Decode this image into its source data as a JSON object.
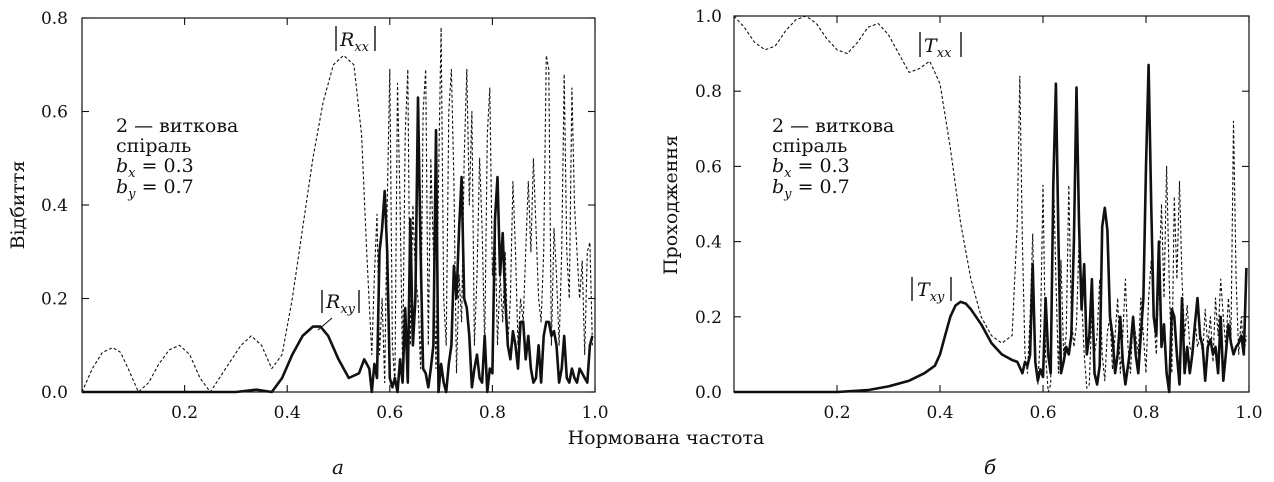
{
  "xlabel": "Нормована частота",
  "chart_data": [
    {
      "type": "line",
      "panel": "а",
      "xlabel": "Нормована частота",
      "ylabel": "Відбиття",
      "xlim": [
        0,
        1.0
      ],
      "ylim": [
        0,
        0.8
      ],
      "xticks": [
        "0.2",
        "0.4",
        "0.6",
        "0.8",
        "1.0"
      ],
      "yticks": [
        "0.0",
        "0.2",
        "0.4",
        "0.6",
        "0.8"
      ],
      "legend_lines": [
        "2 — виткова",
        "спіраль"
      ],
      "params": [
        {
          "sym": "b",
          "sub": "x",
          "val": " = 0.3"
        },
        {
          "sym": "b",
          "sub": "y",
          "val": " = 0.7"
        }
      ],
      "series": [
        {
          "name": "Rxx",
          "label_sym": "R",
          "label_sub": "xx",
          "style": "dashed",
          "x": [
            0.0,
            0.02,
            0.04,
            0.06,
            0.075,
            0.09,
            0.11,
            0.13,
            0.15,
            0.17,
            0.19,
            0.21,
            0.23,
            0.25,
            0.28,
            0.31,
            0.33,
            0.35,
            0.37,
            0.39,
            0.41,
            0.43,
            0.45,
            0.47,
            0.49,
            0.51,
            0.53,
            0.545,
            0.555,
            0.565,
            0.57,
            0.575,
            0.58,
            0.585,
            0.59,
            0.595,
            0.6,
            0.605,
            0.61,
            0.615,
            0.62,
            0.625,
            0.63,
            0.635,
            0.64,
            0.645,
            0.65,
            0.655,
            0.66,
            0.665,
            0.67,
            0.675,
            0.68,
            0.685,
            0.69,
            0.695,
            0.7,
            0.705,
            0.71,
            0.715,
            0.72,
            0.725,
            0.73,
            0.735,
            0.74,
            0.745,
            0.75,
            0.755,
            0.76,
            0.765,
            0.77,
            0.775,
            0.78,
            0.785,
            0.79,
            0.795,
            0.8,
            0.805,
            0.81,
            0.815,
            0.82,
            0.825,
            0.83,
            0.835,
            0.84,
            0.845,
            0.85,
            0.855,
            0.86,
            0.865,
            0.87,
            0.875,
            0.88,
            0.885,
            0.89,
            0.895,
            0.9,
            0.905,
            0.91,
            0.915,
            0.92,
            0.925,
            0.93,
            0.935,
            0.94,
            0.945,
            0.95,
            0.955,
            0.96,
            0.965,
            0.97,
            0.975,
            0.98,
            0.985,
            0.99,
            0.995
          ],
          "y": [
            0.0,
            0.05,
            0.085,
            0.095,
            0.085,
            0.05,
            0.0,
            0.02,
            0.06,
            0.09,
            0.1,
            0.08,
            0.03,
            0.0,
            0.05,
            0.1,
            0.12,
            0.1,
            0.05,
            0.08,
            0.2,
            0.35,
            0.5,
            0.62,
            0.7,
            0.72,
            0.7,
            0.55,
            0.3,
            0.08,
            0.25,
            0.38,
            0.08,
            0.2,
            0.02,
            0.4,
            0.69,
            0.1,
            0.02,
            0.66,
            0.4,
            0.05,
            0.55,
            0.69,
            0.1,
            0.4,
            0.25,
            0.2,
            0.05,
            0.6,
            0.69,
            0.1,
            0.5,
            0.3,
            0.05,
            0.45,
            0.78,
            0.2,
            0.1,
            0.6,
            0.69,
            0.45,
            0.04,
            0.25,
            0.15,
            0.5,
            0.69,
            0.4,
            0.6,
            0.1,
            0.25,
            0.5,
            0.35,
            0.1,
            0.55,
            0.65,
            0.25,
            0.35,
            0.1,
            0.25,
            0.15,
            0.3,
            0.1,
            0.2,
            0.45,
            0.3,
            0.1,
            0.2,
            0.15,
            0.3,
            0.45,
            0.3,
            0.5,
            0.35,
            0.2,
            0.15,
            0.3,
            0.72,
            0.69,
            0.1,
            0.35,
            0.25,
            0.1,
            0.3,
            0.68,
            0.3,
            0.2,
            0.65,
            0.4,
            0.3,
            0.2,
            0.28,
            0.08,
            0.3,
            0.32,
            0.1
          ]
        },
        {
          "name": "Rxy",
          "label_sym": "R",
          "label_sub": "xy",
          "style": "solid",
          "x": [
            0.0,
            0.1,
            0.2,
            0.3,
            0.34,
            0.37,
            0.39,
            0.41,
            0.43,
            0.45,
            0.465,
            0.48,
            0.5,
            0.52,
            0.54,
            0.55,
            0.56,
            0.565,
            0.57,
            0.575,
            0.58,
            0.585,
            0.59,
            0.595,
            0.6,
            0.605,
            0.61,
            0.615,
            0.62,
            0.625,
            0.63,
            0.635,
            0.64,
            0.645,
            0.65,
            0.655,
            0.66,
            0.665,
            0.67,
            0.675,
            0.68,
            0.685,
            0.69,
            0.695,
            0.7,
            0.705,
            0.71,
            0.715,
            0.72,
            0.725,
            0.73,
            0.735,
            0.74,
            0.745,
            0.75,
            0.755,
            0.76,
            0.765,
            0.77,
            0.775,
            0.78,
            0.785,
            0.79,
            0.795,
            0.8,
            0.805,
            0.81,
            0.815,
            0.82,
            0.825,
            0.83,
            0.835,
            0.84,
            0.845,
            0.85,
            0.855,
            0.86,
            0.865,
            0.87,
            0.875,
            0.88,
            0.885,
            0.89,
            0.895,
            0.9,
            0.905,
            0.91,
            0.915,
            0.92,
            0.925,
            0.93,
            0.935,
            0.94,
            0.945,
            0.95,
            0.955,
            0.96,
            0.965,
            0.97,
            0.975,
            0.98,
            0.985,
            0.99,
            0.995
          ],
          "y": [
            0.0,
            0.0,
            0.0,
            0.0,
            0.005,
            0.0,
            0.03,
            0.08,
            0.12,
            0.14,
            0.14,
            0.12,
            0.07,
            0.03,
            0.04,
            0.07,
            0.05,
            0.0,
            0.06,
            0.03,
            0.3,
            0.35,
            0.43,
            0.3,
            0.03,
            0.01,
            0.03,
            0.0,
            0.07,
            0.02,
            0.18,
            0.02,
            0.37,
            0.1,
            0.2,
            0.63,
            0.3,
            0.05,
            0.04,
            0.01,
            0.05,
            0.1,
            0.56,
            0.0,
            0.06,
            0.02,
            0.0,
            0.06,
            0.1,
            0.27,
            0.2,
            0.35,
            0.46,
            0.2,
            0.18,
            0.12,
            0.01,
            0.05,
            0.08,
            0.03,
            0.02,
            0.12,
            0.0,
            0.05,
            0.04,
            0.37,
            0.46,
            0.25,
            0.34,
            0.2,
            0.1,
            0.07,
            0.13,
            0.1,
            0.05,
            0.15,
            0.15,
            0.07,
            0.12,
            0.05,
            0.02,
            0.03,
            0.1,
            0.02,
            0.12,
            0.15,
            0.15,
            0.12,
            0.13,
            0.1,
            0.02,
            0.05,
            0.12,
            0.03,
            0.02,
            0.05,
            0.03,
            0.02,
            0.05,
            0.04,
            0.03,
            0.02,
            0.1,
            0.12
          ]
        }
      ]
    },
    {
      "type": "line",
      "panel": "б",
      "xlabel": "Нормована частота",
      "ylabel": "Проходження",
      "xlim": [
        0,
        1.0
      ],
      "ylim": [
        0,
        1.0
      ],
      "xticks": [
        "0.2",
        "0.4",
        "0.6",
        "0.8",
        "1.0"
      ],
      "yticks": [
        "0.0",
        "0.2",
        "0.4",
        "0.6",
        "0.8",
        "1.0"
      ],
      "legend_lines": [
        "2 — виткова",
        "спіраль"
      ],
      "params": [
        {
          "sym": "b",
          "sub": "x",
          "val": " = 0.3"
        },
        {
          "sym": "b",
          "sub": "y",
          "val": " = 0.7"
        }
      ],
      "series": [
        {
          "name": "Txx",
          "label_sym": "T",
          "label_sub": "xx",
          "style": "dashed",
          "x": [
            0.0,
            0.02,
            0.04,
            0.06,
            0.08,
            0.1,
            0.12,
            0.14,
            0.16,
            0.18,
            0.2,
            0.22,
            0.24,
            0.26,
            0.28,
            0.3,
            0.32,
            0.34,
            0.36,
            0.38,
            0.4,
            0.42,
            0.44,
            0.46,
            0.48,
            0.5,
            0.52,
            0.54,
            0.55,
            0.555,
            0.56,
            0.565,
            0.57,
            0.575,
            0.58,
            0.585,
            0.59,
            0.595,
            0.6,
            0.605,
            0.61,
            0.615,
            0.62,
            0.625,
            0.63,
            0.635,
            0.64,
            0.645,
            0.65,
            0.655,
            0.66,
            0.665,
            0.67,
            0.675,
            0.68,
            0.685,
            0.69,
            0.695,
            0.7,
            0.705,
            0.71,
            0.715,
            0.72,
            0.725,
            0.73,
            0.735,
            0.74,
            0.745,
            0.75,
            0.755,
            0.76,
            0.765,
            0.77,
            0.775,
            0.78,
            0.785,
            0.79,
            0.795,
            0.8,
            0.805,
            0.81,
            0.815,
            0.82,
            0.825,
            0.83,
            0.835,
            0.84,
            0.845,
            0.85,
            0.855,
            0.86,
            0.865,
            0.87,
            0.875,
            0.88,
            0.885,
            0.89,
            0.895,
            0.9,
            0.905,
            0.91,
            0.915,
            0.92,
            0.925,
            0.93,
            0.935,
            0.94,
            0.945,
            0.95,
            0.955,
            0.96,
            0.965,
            0.97,
            0.975,
            0.98,
            0.985,
            0.99,
            0.995
          ],
          "y": [
            1.0,
            0.97,
            0.93,
            0.91,
            0.92,
            0.96,
            0.99,
            1.0,
            0.98,
            0.94,
            0.91,
            0.9,
            0.93,
            0.97,
            0.98,
            0.95,
            0.9,
            0.85,
            0.86,
            0.88,
            0.82,
            0.65,
            0.45,
            0.3,
            0.2,
            0.15,
            0.13,
            0.15,
            0.45,
            0.84,
            0.4,
            0.1,
            0.05,
            0.2,
            0.42,
            0.1,
            0.02,
            0.15,
            0.55,
            0.1,
            0.0,
            0.02,
            0.6,
            0.3,
            0.05,
            0.35,
            0.1,
            0.15,
            0.55,
            0.2,
            0.12,
            0.18,
            0.4,
            0.25,
            0.1,
            0.01,
            0.02,
            0.22,
            0.1,
            0.15,
            0.3,
            0.1,
            0.03,
            0.16,
            0.2,
            0.06,
            0.15,
            0.25,
            0.05,
            0.15,
            0.3,
            0.12,
            0.05,
            0.2,
            0.15,
            0.1,
            0.25,
            0.15,
            0.05,
            0.25,
            0.35,
            0.2,
            0.1,
            0.3,
            0.5,
            0.25,
            0.6,
            0.3,
            0.05,
            0.52,
            0.3,
            0.56,
            0.3,
            0.15,
            0.23,
            0.12,
            0.1,
            0.2,
            0.12,
            0.15,
            0.1,
            0.22,
            0.12,
            0.2,
            0.08,
            0.25,
            0.15,
            0.3,
            0.2,
            0.12,
            0.25,
            0.15,
            0.72,
            0.3,
            0.1,
            0.2,
            0.1,
            0.15
          ]
        },
        {
          "name": "Txy",
          "label_sym": "T",
          "label_sub": "xy",
          "style": "solid",
          "x": [
            0.0,
            0.1,
            0.2,
            0.26,
            0.3,
            0.34,
            0.37,
            0.39,
            0.4,
            0.41,
            0.42,
            0.43,
            0.44,
            0.45,
            0.46,
            0.48,
            0.5,
            0.52,
            0.54,
            0.55,
            0.56,
            0.565,
            0.57,
            0.575,
            0.58,
            0.585,
            0.59,
            0.595,
            0.6,
            0.605,
            0.61,
            0.615,
            0.62,
            0.625,
            0.63,
            0.635,
            0.64,
            0.645,
            0.65,
            0.655,
            0.66,
            0.665,
            0.67,
            0.675,
            0.68,
            0.685,
            0.69,
            0.695,
            0.7,
            0.705,
            0.71,
            0.715,
            0.72,
            0.725,
            0.73,
            0.735,
            0.74,
            0.745,
            0.75,
            0.755,
            0.76,
            0.765,
            0.77,
            0.775,
            0.78,
            0.785,
            0.79,
            0.795,
            0.8,
            0.805,
            0.81,
            0.815,
            0.82,
            0.825,
            0.83,
            0.835,
            0.84,
            0.845,
            0.85,
            0.855,
            0.86,
            0.865,
            0.87,
            0.875,
            0.88,
            0.885,
            0.89,
            0.895,
            0.9,
            0.905,
            0.91,
            0.915,
            0.92,
            0.925,
            0.93,
            0.935,
            0.94,
            0.945,
            0.95,
            0.955,
            0.96,
            0.965,
            0.97,
            0.975,
            0.98,
            0.985,
            0.99,
            0.995
          ],
          "y": [
            0.0,
            0.0,
            0.0,
            0.005,
            0.015,
            0.03,
            0.05,
            0.07,
            0.1,
            0.15,
            0.2,
            0.23,
            0.24,
            0.235,
            0.22,
            0.18,
            0.13,
            0.1,
            0.085,
            0.08,
            0.05,
            0.08,
            0.07,
            0.1,
            0.34,
            0.08,
            0.03,
            0.06,
            0.04,
            0.25,
            0.1,
            0.05,
            0.55,
            0.82,
            0.4,
            0.05,
            0.08,
            0.12,
            0.1,
            0.15,
            0.4,
            0.81,
            0.45,
            0.22,
            0.34,
            0.1,
            0.15,
            0.3,
            0.05,
            0.02,
            0.07,
            0.44,
            0.49,
            0.43,
            0.2,
            0.15,
            0.05,
            0.1,
            0.2,
            0.08,
            0.02,
            0.07,
            0.12,
            0.2,
            0.1,
            0.05,
            0.15,
            0.25,
            0.6,
            0.87,
            0.5,
            0.2,
            0.15,
            0.4,
            0.12,
            0.18,
            0.05,
            0.0,
            0.22,
            0.2,
            0.1,
            0.02,
            0.25,
            0.05,
            0.12,
            0.05,
            0.1,
            0.18,
            0.25,
            0.15,
            0.12,
            0.03,
            0.12,
            0.14,
            0.1,
            0.12,
            0.05,
            0.2,
            0.03,
            0.1,
            0.18,
            0.13,
            0.1,
            0.12,
            0.13,
            0.15,
            0.1,
            0.33
          ]
        }
      ]
    }
  ]
}
